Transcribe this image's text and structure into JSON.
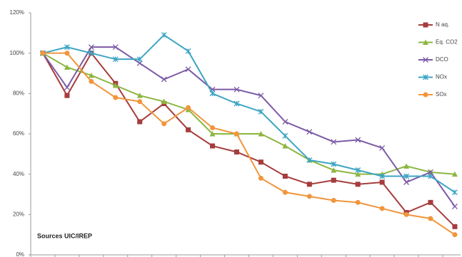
{
  "chart_data": {
    "type": "line",
    "categories": [
      null,
      null,
      null,
      null,
      null,
      null,
      null,
      null,
      null,
      null,
      null,
      null,
      null,
      null,
      null,
      null,
      null,
      null
    ],
    "series": [
      {
        "name": "N aq.",
        "color": "#a63c3c",
        "marker": "square",
        "values": [
          100,
          79,
          100,
          85,
          66,
          75,
          62,
          54,
          51,
          46,
          39,
          35,
          37,
          35,
          36,
          21,
          26,
          14
        ]
      },
      {
        "name": "Eq. CO2",
        "color": "#8db641",
        "marker": "triangle",
        "values": [
          100,
          93,
          89,
          84,
          79,
          76,
          72,
          60,
          60,
          60,
          54,
          47,
          42,
          40,
          40,
          44,
          41,
          40
        ]
      },
      {
        "name": "DCO",
        "color": "#7d5aa6",
        "marker": "cross",
        "values": [
          100,
          83,
          103,
          103,
          95,
          87,
          92,
          82,
          82,
          79,
          66,
          61,
          56,
          57,
          53,
          36,
          41,
          24
        ]
      },
      {
        "name": "NOx",
        "color": "#3ca5c4",
        "marker": "star",
        "values": [
          100,
          103,
          100,
          97,
          97,
          109,
          101,
          80,
          75,
          71,
          59,
          47,
          45,
          42,
          39,
          39,
          39,
          31
        ]
      },
      {
        "name": "SOx",
        "color": "#f0963c",
        "marker": "circle",
        "values": [
          100,
          100,
          86,
          78,
          76,
          65,
          73,
          63,
          60,
          38,
          31,
          29,
          27,
          26,
          23,
          20,
          18,
          10
        ]
      }
    ],
    "ylim": [
      0,
      120
    ],
    "yticks": [
      {
        "value": 0,
        "label": "0%"
      },
      {
        "value": 20,
        "label": "20%"
      },
      {
        "value": 40,
        "label": "40%"
      },
      {
        "value": 60,
        "label": "60%"
      },
      {
        "value": 80,
        "label": "80%"
      },
      {
        "value": 100,
        "label": "100%"
      },
      {
        "value": 120,
        "label": "120%"
      }
    ],
    "grid": false,
    "legend": "top-right",
    "annotation": "Sources UIC/IREP"
  }
}
